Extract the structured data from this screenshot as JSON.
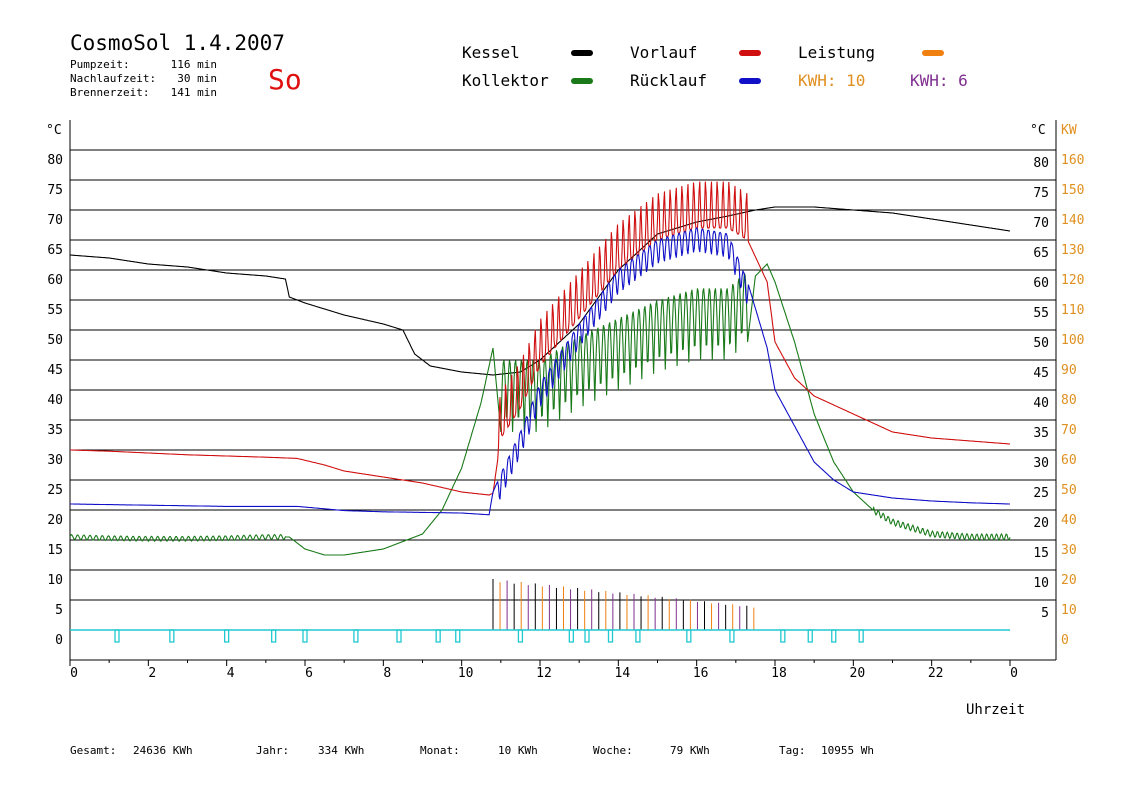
{
  "header": {
    "title": "CosmoSol 1.4.2007",
    "day": "So",
    "pump_label": "Pumpzeit:",
    "pump_value": "116 min",
    "nachlauf_label": "Nachlaufzeit:",
    "nachlauf_value": "30 min",
    "brenner_label": "Brennerzeit:",
    "brenner_value": "141 min"
  },
  "legend": {
    "kessel": "Kessel",
    "kollektor": "Kollektor",
    "vorlauf": "Vorlauf",
    "ruecklauf": "Rücklauf",
    "leistung": "Leistung",
    "kwh1": "KWH: 10",
    "kwh2": "KWH: 6"
  },
  "footer": {
    "gesamt_label": "Gesamt:",
    "gesamt_value": "24636 KWh",
    "jahr_label": "Jahr:",
    "jahr_value": "334 KWh",
    "monat_label": "Monat:",
    "monat_value": "10 KWh",
    "woche_label": "Woche:",
    "woche_value": "79 KWh",
    "tag_label": "Tag:",
    "tag_value": "10955 Wh"
  },
  "colors": {
    "kessel": "#000000",
    "kollektor": "#1a7a1a",
    "vorlauf": "#d01010",
    "ruecklauf": "#1010c8",
    "leistung": "#f08010",
    "kwh1": "#e09020",
    "kwh2": "#803090",
    "pump": "#20c8d0",
    "title_day": "#e01010"
  },
  "chart_data": {
    "type": "line",
    "xlabel": "Uhrzeit",
    "ylabel_left": "°C",
    "ylabel_right": "°C",
    "ylabel_power": "KW",
    "xlim": [
      0,
      24
    ],
    "ylim": [
      0,
      80
    ],
    "x_ticks": [
      "0",
      "2",
      "4",
      "6",
      "8",
      "10",
      "12",
      "14",
      "16",
      "18",
      "20",
      "22",
      "0"
    ],
    "y_ticks_left": [
      "80",
      "75",
      "70",
      "65",
      "60",
      "55",
      "50",
      "45",
      "40",
      "35",
      "30",
      "25",
      "20",
      "15",
      "10",
      "5",
      "0"
    ],
    "y_ticks_right": [
      "80",
      "75",
      "70",
      "65",
      "60",
      "55",
      "50",
      "45",
      "40",
      "35",
      "30",
      "25",
      "20",
      "15",
      "10",
      "5"
    ],
    "y_ticks_power": [
      "160",
      "150",
      "140",
      "130",
      "120",
      "110",
      "100",
      "90",
      "80",
      "70",
      "60",
      "50",
      "40",
      "30",
      "20",
      "10",
      "0"
    ],
    "grid": true,
    "series": [
      {
        "name": "Kessel",
        "color_key": "kessel",
        "x": [
          0,
          1,
          2,
          3,
          4,
          5,
          5.5,
          5.6,
          6,
          7,
          8,
          8.5,
          8.8,
          9.2,
          10,
          10.8,
          11.5,
          12,
          13,
          14,
          15,
          16,
          16.8,
          17.5,
          18,
          19,
          20,
          21,
          22,
          23,
          24
        ],
        "y": [
          62.5,
          62,
          61,
          60.5,
          59.5,
          59,
          58.5,
          55.5,
          54.5,
          52.5,
          51,
          50,
          46,
          44,
          43,
          42.5,
          43,
          45,
          51,
          60,
          66,
          68,
          69,
          70,
          70.5,
          70.5,
          70,
          69.5,
          68.5,
          67.5,
          66.5
        ]
      },
      {
        "name": "Kollektor",
        "color_key": "kollektor",
        "x": [
          0,
          1,
          2,
          3,
          4,
          5,
          5.6,
          6,
          6.5,
          7,
          8,
          9,
          9.5,
          10,
          10.5,
          10.8,
          11,
          12,
          13,
          14,
          15,
          16,
          16.8,
          17.3,
          17.5,
          17.8,
          18,
          18.5,
          19,
          19.5,
          20,
          20.5,
          21,
          22,
          23,
          24
        ],
        "y": [
          15.5,
          15.3,
          15.2,
          15.2,
          15.3,
          15.5,
          15.5,
          13.5,
          12.5,
          12.5,
          13.5,
          16,
          20,
          27,
          38,
          47,
          33,
          33,
          37,
          40,
          43,
          45,
          45,
          48,
          59,
          61,
          58,
          48,
          36,
          28,
          23,
          20,
          18,
          16,
          15.5,
          15.5
        ]
      },
      {
        "name": "Vorlauf",
        "color_key": "vorlauf",
        "x": [
          0,
          1,
          2,
          3,
          4,
          5,
          5.8,
          6.5,
          7,
          8,
          9,
          10,
          10.7,
          10.8,
          11,
          11.5,
          12,
          13,
          14,
          15,
          16,
          16.8,
          17.3,
          17.8,
          18,
          18.5,
          19,
          20,
          21,
          22,
          23,
          24
        ],
        "y": [
          30,
          29.8,
          29.5,
          29.2,
          29,
          28.8,
          28.6,
          27.5,
          26.5,
          25.5,
          24.5,
          23,
          22.5,
          22.8,
          32,
          37,
          44,
          52,
          60,
          65,
          67,
          67,
          65,
          58,
          48,
          42,
          39,
          36,
          33,
          32,
          31.5,
          31
        ]
      },
      {
        "name": "Rücklauf",
        "color_key": "ruecklauf",
        "x": [
          0,
          1,
          2,
          3,
          4,
          5,
          5.8,
          6.5,
          7,
          8,
          9,
          10,
          10.7,
          10.8,
          11,
          11.5,
          12,
          13,
          14,
          15,
          16,
          16.8,
          17.3,
          17.8,
          18,
          18.5,
          19,
          19.5,
          20,
          21,
          22,
          23,
          24
        ],
        "y": [
          21,
          20.9,
          20.8,
          20.7,
          20.6,
          20.6,
          20.6,
          20.2,
          19.9,
          19.7,
          19.6,
          19.5,
          19.2,
          23,
          26,
          33,
          41,
          51,
          60,
          65,
          67,
          66,
          58,
          47,
          40,
          34,
          28,
          25,
          23,
          22,
          21.5,
          21.2,
          21
        ]
      }
    ],
    "power_bars": {
      "name": "Leistung",
      "x_range": [
        10.8,
        17.6
      ],
      "peak": 8.5
    },
    "pump_markers": [
      1.2,
      2.6,
      4.0,
      5.2,
      6.0,
      7.3,
      8.4,
      9.4,
      9.9,
      11.5,
      12.8,
      13.2,
      13.8,
      14.5,
      15.8,
      16.9,
      18.2,
      18.9,
      19.5,
      20.2
    ]
  }
}
